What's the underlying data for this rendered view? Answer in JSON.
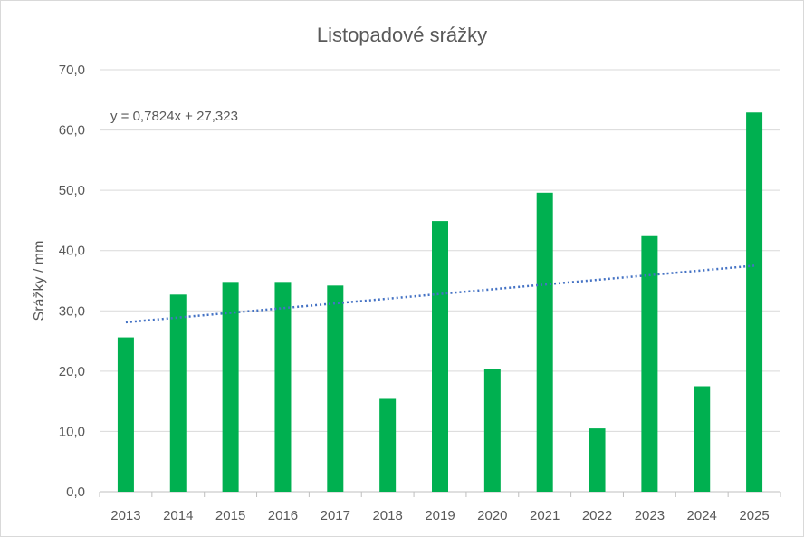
{
  "chart_data": {
    "type": "bar",
    "title": "Listopadové srážky",
    "xlabel": "",
    "ylabel": "Srážky / mm",
    "categories": [
      "2013",
      "2014",
      "2015",
      "2016",
      "2017",
      "2018",
      "2019",
      "2020",
      "2021",
      "2022",
      "2023",
      "2024",
      "2025"
    ],
    "values": [
      25.6,
      32.7,
      34.8,
      34.8,
      34.2,
      15.4,
      44.9,
      20.4,
      49.6,
      10.5,
      42.4,
      17.5,
      62.9
    ],
    "ylim": [
      0,
      70
    ],
    "yticks": [
      "0,0",
      "10,0",
      "20,0",
      "30,0",
      "40,0",
      "50,0",
      "60,0",
      "70,0"
    ],
    "grid": true,
    "bar_color": "#00b050",
    "trendline": {
      "type": "linear",
      "slope": 0.7824,
      "intercept": 27.323,
      "label": "y = 0,7824x + 27,323",
      "color": "#4472c4"
    }
  }
}
